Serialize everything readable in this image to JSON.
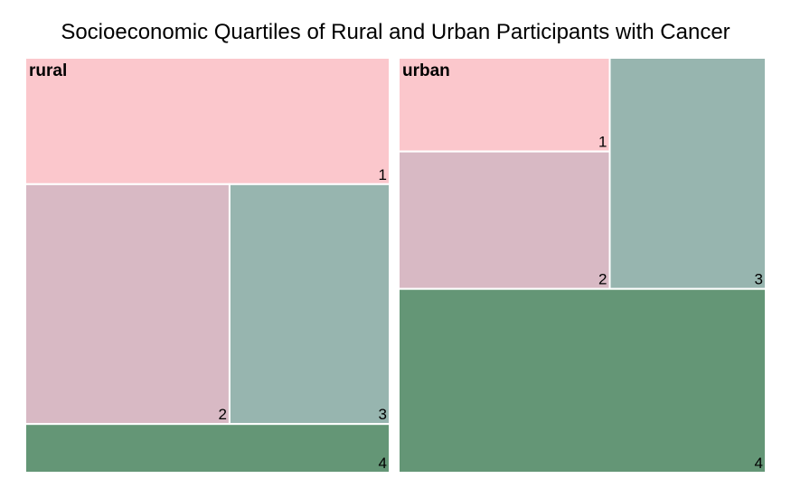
{
  "chart_data": {
    "type": "treemap",
    "title": "Socioeconomic Quartiles of Rural and Urban Participants with Cancer",
    "colors": {
      "1": "#fbc7cc",
      "2": "#d8b9c4",
      "3": "#97b5af",
      "4": "#649676"
    },
    "groups": [
      {
        "name": "rural",
        "tiles": [
          {
            "label": "1",
            "value": 26.5
          },
          {
            "label": "2",
            "value": 28.2
          },
          {
            "label": "3",
            "value": 22.1
          },
          {
            "label": "4",
            "value": 10.2
          }
        ]
      },
      {
        "name": "urban",
        "tiles": [
          {
            "label": "1",
            "value": 10.7
          },
          {
            "label": "2",
            "value": 15.7
          },
          {
            "label": "3",
            "value": 19.5
          },
          {
            "label": "4",
            "value": 36.5
          }
        ]
      }
    ]
  }
}
